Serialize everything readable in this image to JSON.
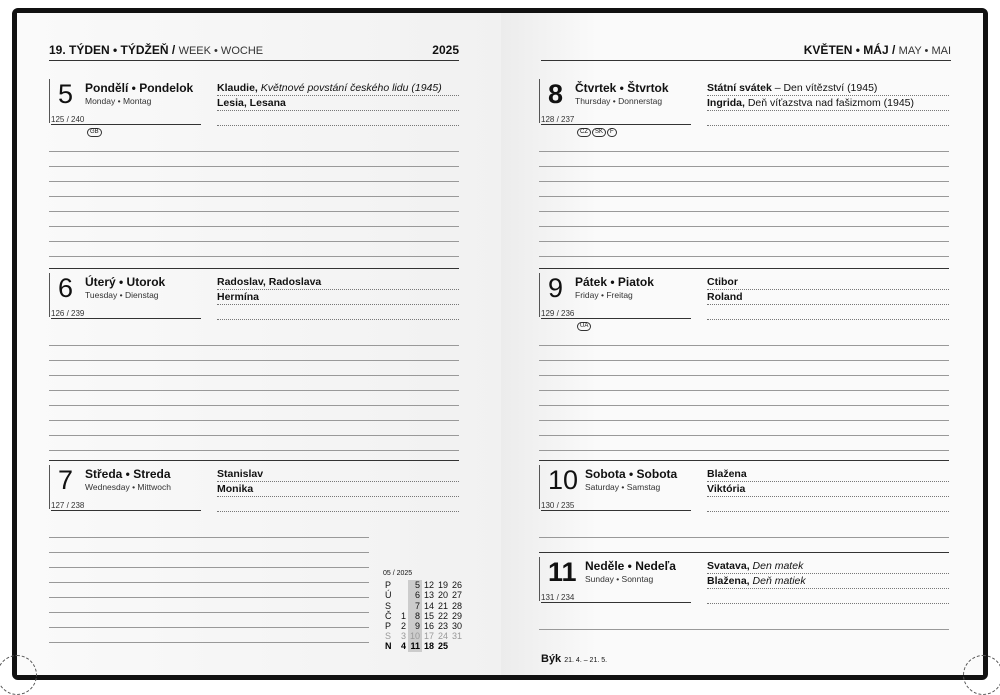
{
  "left_header": {
    "title": "19. TÝDEN • TÝDŽEŇ /",
    "sub": "WEEK • WOCHE",
    "year": "2025"
  },
  "right_header": {
    "title": "KVĚTEN • MÁJ /",
    "sub": "MAY • MAI"
  },
  "days": [
    {
      "num": "5",
      "name": "Pondělí • Pondelok",
      "sub": "Monday • Montag",
      "count": "125 / 240",
      "badges": [
        "GB"
      ],
      "bold": false,
      "names": [
        {
          "b": "Klaudie,",
          "i": "Květnové povstání českého lidu (1945)",
          "t": ""
        },
        {
          "b": "Lesia, Lesana",
          "i": "",
          "t": ""
        }
      ]
    },
    {
      "num": "6",
      "name": "Úterý • Utorok",
      "sub": "Tuesday • Dienstag",
      "count": "126 / 239",
      "badges": [],
      "bold": false,
      "names": [
        {
          "b": "Radoslav, Radoslava",
          "i": "",
          "t": ""
        },
        {
          "b": "Hermína",
          "i": "",
          "t": ""
        }
      ]
    },
    {
      "num": "7",
      "name": "Středa • Streda",
      "sub": "Wednesday • Mittwoch",
      "count": "127 / 238",
      "badges": [],
      "bold": false,
      "names": [
        {
          "b": "Stanislav",
          "i": "",
          "t": ""
        },
        {
          "b": "Monika",
          "i": "",
          "t": ""
        }
      ]
    },
    {
      "num": "8",
      "name": "Čtvrtek • Štvrtok",
      "sub": "Thursday • Donnerstag",
      "count": "128 / 237",
      "badges": [
        "CZ",
        "SK",
        "F"
      ],
      "bold": true,
      "names": [
        {
          "b": "Státní svátek",
          "i": "",
          "t": " – Den vítězství (1945)"
        },
        {
          "b": "Ingrida,",
          "i": "",
          "t": " Deň víťazstva nad fašizmom (1945)"
        }
      ]
    },
    {
      "num": "9",
      "name": "Pátek • Piatok",
      "sub": "Friday • Freitag",
      "count": "129 / 236",
      "badges": [
        "UA"
      ],
      "bold": false,
      "names": [
        {
          "b": "Ctibor",
          "i": "",
          "t": ""
        },
        {
          "b": "Roland",
          "i": "",
          "t": ""
        }
      ]
    },
    {
      "num": "10",
      "name": "Sobota • Sobota",
      "sub": "Saturday • Samstag",
      "count": "130 / 235",
      "badges": [],
      "bold": false,
      "names": [
        {
          "b": "Blažena",
          "i": "",
          "t": ""
        },
        {
          "b": "Viktória",
          "i": "",
          "t": ""
        }
      ]
    },
    {
      "num": "11",
      "name": "Neděle • Nedeľa",
      "sub": "Sunday • Sonntag",
      "count": "131 / 234",
      "badges": [],
      "bold": true,
      "names": [
        {
          "b": "Svatava,",
          "i": "Den matek",
          "t": ""
        },
        {
          "b": "Blažena,",
          "i": "Deň matiek",
          "t": ""
        }
      ]
    }
  ],
  "mini_calendar": {
    "title": "05 / 2025",
    "highlight_week": 2,
    "rows": [
      [
        "P",
        "",
        "5",
        "12",
        "19",
        "26"
      ],
      [
        "Ú",
        "",
        "6",
        "13",
        "20",
        "27"
      ],
      [
        "S",
        "",
        "7",
        "14",
        "21",
        "28"
      ],
      [
        "Č",
        "1",
        "8",
        "15",
        "22",
        "29"
      ],
      [
        "P",
        "2",
        "9",
        "16",
        "23",
        "30"
      ],
      [
        "S",
        "3",
        "10",
        "17",
        "24",
        "31"
      ],
      [
        "N",
        "4",
        "11",
        "18",
        "25",
        ""
      ]
    ]
  },
  "footer": {
    "sign": "Býk",
    "range": "21. 4. – 21. 5."
  }
}
